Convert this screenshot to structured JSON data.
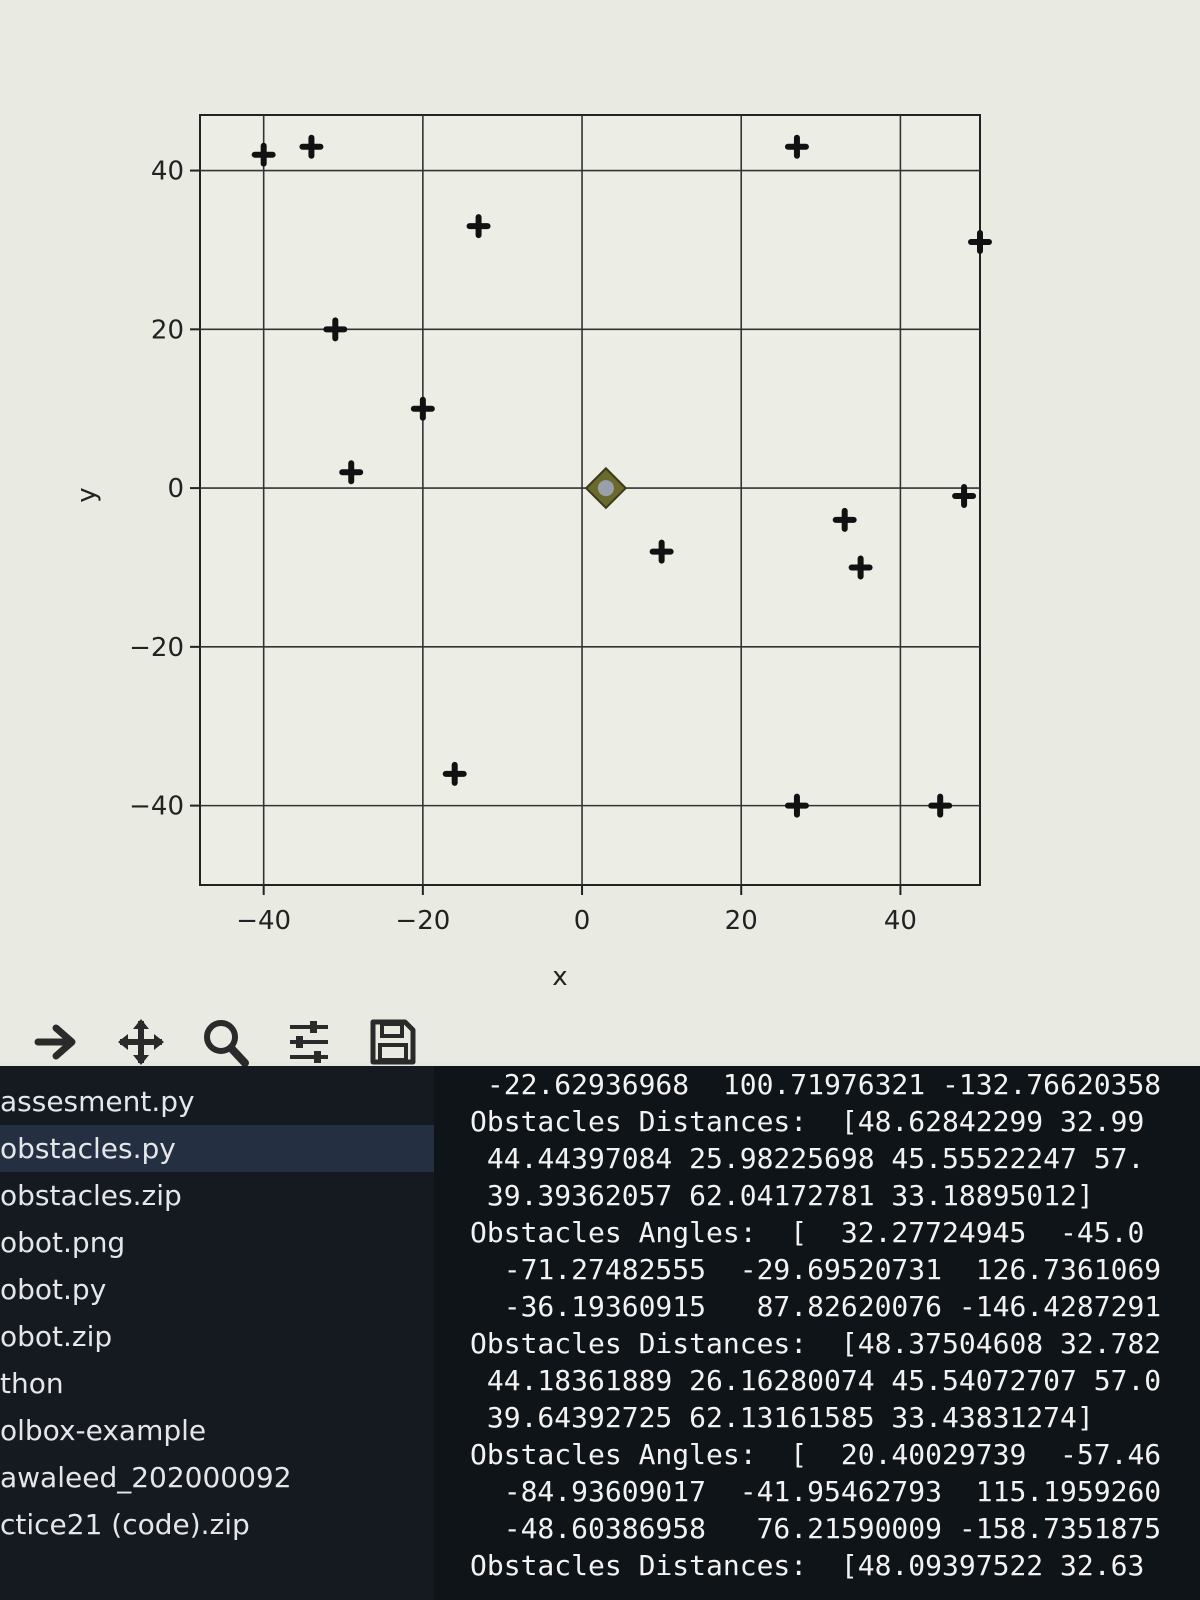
{
  "chart_data": {
    "type": "scatter",
    "xlabel": "x",
    "ylabel": "y",
    "xlim": [
      -48,
      50
    ],
    "ylim": [
      -50,
      47
    ],
    "xticks": [
      -40,
      -20,
      0,
      20,
      40
    ],
    "yticks": [
      -40,
      -20,
      0,
      20,
      40
    ],
    "xtick_labels": [
      "−40",
      "−20",
      "0",
      "20",
      "40"
    ],
    "ytick_labels": [
      "−40",
      "−20",
      "0",
      "20",
      "40"
    ],
    "grid": true,
    "series": [
      {
        "marker": "plus",
        "color": "#111111",
        "points": [
          {
            "x": -40,
            "y": 42
          },
          {
            "x": -34,
            "y": 43
          },
          {
            "x": -31,
            "y": 20
          },
          {
            "x": -13,
            "y": 33
          },
          {
            "x": -20,
            "y": 10
          },
          {
            "x": -29,
            "y": 2
          },
          {
            "x": 10,
            "y": -8
          },
          {
            "x": 27,
            "y": 43
          },
          {
            "x": 33,
            "y": -4
          },
          {
            "x": 35,
            "y": -10
          },
          {
            "x": 48,
            "y": -1
          },
          {
            "x": 50,
            "y": 31
          },
          {
            "x": -16,
            "y": -36
          },
          {
            "x": 27,
            "y": -40
          },
          {
            "x": 45,
            "y": -40
          }
        ]
      },
      {
        "marker": "robot",
        "color": "#6b6a2e",
        "points": [
          {
            "x": 3,
            "y": 0
          }
        ]
      }
    ]
  },
  "toolbar": {
    "tools": [
      {
        "name": "forward-arrow-icon"
      },
      {
        "name": "pan-icon"
      },
      {
        "name": "zoom-icon"
      },
      {
        "name": "configure-subplots-icon"
      },
      {
        "name": "save-icon"
      }
    ]
  },
  "file_explorer": {
    "items": [
      {
        "label": "assesment.py",
        "selected": false
      },
      {
        "label": "obstacles.py",
        "selected": true
      },
      {
        "label": "obstacles.zip",
        "selected": false
      },
      {
        "label": "obot.png",
        "selected": false
      },
      {
        "label": "obot.py",
        "selected": false
      },
      {
        "label": "obot.zip",
        "selected": false
      },
      {
        "label": "thon",
        "selected": false
      },
      {
        "label": "olbox-example",
        "selected": false
      },
      {
        "label": "awaleed_202000092",
        "selected": false
      },
      {
        "label": "ctice21 (code).zip",
        "selected": false
      }
    ]
  },
  "terminal": {
    "lines": [
      " -22.62936968  100.71976321 -132.76620358",
      "Obstacles Distances:  [48.62842299 32.99",
      " 44.44397084 25.98225698 45.55522247 57.",
      " 39.39362057 62.04172781 33.18895012]",
      "Obstacles Angles:  [  32.27724945  -45.0",
      "  -71.27482555  -29.69520731  126.7361069",
      "  -36.19360915   87.82620076 -146.4287291",
      "Obstacles Distances:  [48.37504608 32.782",
      " 44.18361889 26.16280074 45.54072707 57.0",
      " 39.64392725 62.13161585 33.43831274]",
      "Obstacles Angles:  [  20.40029739  -57.46",
      "  -84.93609017  -41.95462793  115.1959260",
      "  -48.60386958   76.21590009 -158.7351875",
      "Obstacles Distances:  [48.09397522 32.63"
    ]
  }
}
